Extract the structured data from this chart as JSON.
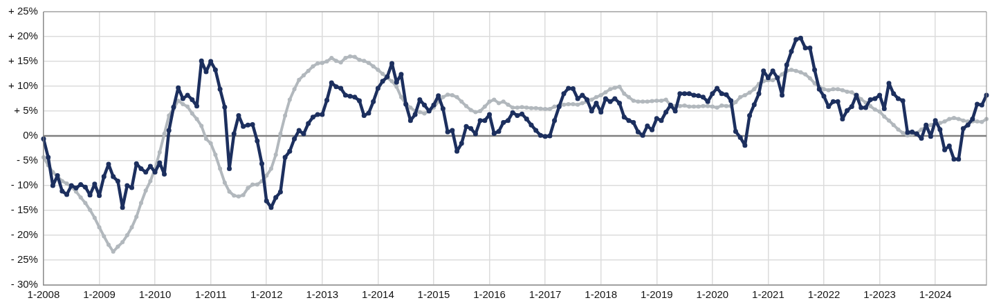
{
  "chart_data": {
    "type": "line",
    "categories": [
      "1-2008",
      null,
      null,
      null,
      null,
      null,
      null,
      null,
      null,
      null,
      null,
      null,
      "1-2009",
      null,
      null,
      null,
      null,
      null,
      null,
      null,
      null,
      null,
      null,
      null,
      "1-2010",
      null,
      null,
      null,
      null,
      null,
      null,
      null,
      null,
      null,
      null,
      null,
      "1-2011",
      null,
      null,
      null,
      null,
      null,
      null,
      null,
      null,
      null,
      null,
      null,
      "1-2012",
      null,
      null,
      null,
      null,
      null,
      null,
      null,
      null,
      null,
      null,
      null,
      "1-2013",
      null,
      null,
      null,
      null,
      null,
      null,
      null,
      null,
      null,
      null,
      null,
      "1-2014",
      null,
      null,
      null,
      null,
      null,
      null,
      null,
      null,
      null,
      null,
      null,
      "1-2015",
      null,
      null,
      null,
      null,
      null,
      null,
      null,
      null,
      null,
      null,
      null,
      "1-2016",
      null,
      null,
      null,
      null,
      null,
      null,
      null,
      null,
      null,
      null,
      null,
      "1-2017",
      null,
      null,
      null,
      null,
      null,
      null,
      null,
      null,
      null,
      null,
      null,
      "1-2018",
      null,
      null,
      null,
      null,
      null,
      null,
      null,
      null,
      null,
      null,
      null,
      "1-2019",
      null,
      null,
      null,
      null,
      null,
      null,
      null,
      null,
      null,
      null,
      null,
      "1-2020",
      null,
      null,
      null,
      null,
      null,
      null,
      null,
      null,
      null,
      null,
      null,
      "1-2021",
      null,
      null,
      null,
      null,
      null,
      null,
      null,
      null,
      null,
      null,
      null,
      "1-2022",
      null,
      null,
      null,
      null,
      null,
      null,
      null,
      null,
      null,
      null,
      null,
      "1-2023",
      null,
      null,
      null,
      null,
      null,
      null,
      null,
      null,
      null,
      null,
      null,
      "1-2024",
      null,
      null,
      null,
      null,
      null,
      null,
      null,
      null,
      null,
      null,
      null
    ],
    "series": [
      {
        "color": "#1c2f5e",
        "values": [
          -0.6,
          -4.3,
          -10,
          -8,
          -11.1,
          -11.8,
          -10,
          -10.5,
          -9.8,
          -10.3,
          -11.9,
          -9.7,
          -12,
          -8.2,
          -5.7,
          -8.2,
          -9.1,
          -14.4,
          -10,
          -10.4,
          -5.6,
          -6.6,
          -7.3,
          -6.1,
          -7.3,
          -5.4,
          -7.7,
          1.1,
          5.8,
          9.7,
          7.5,
          8.2,
          7.3,
          6,
          15.1,
          12.9,
          15,
          13.3,
          9.4,
          5.8,
          -6.6,
          0.4,
          4.1,
          1.9,
          2.2,
          2.3,
          -1,
          -5.6,
          -13.1,
          -14.4,
          -12.4,
          -11.3,
          -4.3,
          -3.1,
          -0.6,
          1.1,
          0.4,
          2.5,
          3.8,
          4.3,
          4.3,
          7.2,
          10.7,
          9.9,
          9.6,
          8.2,
          8,
          7.8,
          7.1,
          4.1,
          4.6,
          6.9,
          9.6,
          11,
          11.9,
          14.6,
          10.8,
          12.4,
          6.4,
          3.1,
          4.3,
          7.3,
          6.2,
          5,
          6.2,
          8.1,
          5.5,
          0.8,
          1.1,
          -3.1,
          -1.5,
          1.9,
          1.5,
          0.4,
          3.1,
          3.1,
          4.3,
          0.5,
          0.9,
          2.7,
          3.1,
          4.7,
          4.1,
          4.4,
          3.4,
          2.2,
          1.1,
          0.1,
          -0.1,
          0,
          3.1,
          5.9,
          8.5,
          9.6,
          9.5,
          7.5,
          8.2,
          7.3,
          5,
          6.6,
          4.8,
          7.5,
          6.9,
          7.5,
          6.6,
          3.8,
          3.1,
          2.7,
          0.8,
          0.1,
          2,
          1.2,
          3.5,
          3.1,
          4.8,
          6.2,
          5,
          8.5,
          8.5,
          8.5,
          8.2,
          8.1,
          7.8,
          6.9,
          8.5,
          9.6,
          8.5,
          8.3,
          7.1,
          0.9,
          -0.3,
          -1.9,
          4.1,
          6.3,
          8.5,
          13.1,
          11.7,
          13.1,
          11.7,
          8.2,
          14.3,
          17,
          19.4,
          19.7,
          17.7,
          17.7,
          13.3,
          9.4,
          8,
          5.9,
          6.9,
          6.9,
          3.4,
          5.1,
          5.9,
          8.2,
          5.7,
          5.7,
          7.3,
          7.5,
          8.2,
          5.5,
          10.6,
          8.5,
          7.5,
          7.1,
          0.7,
          0.8,
          0.4,
          -0.5,
          2.2,
          -0.1,
          3.1,
          1.3,
          -2.8,
          -2,
          -4.7,
          -4.7,
          1.5,
          2.2,
          3.4,
          6.4,
          6.2,
          8.2
        ]
      },
      {
        "color": "#b2b8bd",
        "values": [
          -4.3,
          -5.9,
          -7.3,
          -8.2,
          -9.1,
          -9.6,
          -10.3,
          -11.2,
          -12.4,
          -13.5,
          -14.9,
          -16.5,
          -18.4,
          -20.2,
          -21.9,
          -23.3,
          -22.3,
          -21.4,
          -20,
          -18.4,
          -16.3,
          -13.5,
          -11,
          -9.1,
          -6.6,
          -3.3,
          0.4,
          4.1,
          5.5,
          7.1,
          6.4,
          5.9,
          4.5,
          3.4,
          2,
          -0.6,
          -1.5,
          -3.8,
          -6.6,
          -9.4,
          -11.2,
          -12,
          -12.2,
          -11.9,
          -10.5,
          -9.8,
          -9.8,
          -9.1,
          -8,
          -6.6,
          -3.8,
          0.4,
          4.1,
          7.3,
          9.4,
          11.3,
          12.2,
          13.1,
          14,
          14.6,
          14.7,
          15,
          15.7,
          15.1,
          14.8,
          15.7,
          16,
          15.9,
          15.3,
          15.1,
          14.7,
          14,
          13.3,
          12.5,
          11.7,
          11,
          9.9,
          7.8,
          6.4,
          5.7,
          5,
          4.8,
          4.5,
          5,
          5.7,
          6.9,
          7.8,
          8.3,
          8.2,
          7.8,
          6.9,
          6,
          5.2,
          4.8,
          5,
          5.9,
          6.9,
          7.3,
          6.6,
          6.9,
          6.3,
          5.7,
          5.7,
          5.8,
          5.7,
          5.6,
          5.6,
          5.5,
          5.4,
          5.4,
          5.9,
          6.1,
          6.3,
          6.4,
          6.4,
          6.3,
          6.6,
          6.9,
          7.3,
          7.8,
          8.2,
          8.8,
          9.4,
          9.7,
          9.9,
          8.5,
          7.8,
          7.1,
          6.9,
          6.9,
          6.9,
          7,
          7.1,
          7.1,
          7.3,
          6.2,
          6,
          6,
          6.1,
          5.9,
          5.9,
          5.9,
          6,
          6,
          5.9,
          5.7,
          6.1,
          6,
          6,
          6.8,
          7.8,
          8.2,
          8.7,
          9.4,
          10.5,
          11,
          11.2,
          11.2,
          11.7,
          12.4,
          13.1,
          13.3,
          13.1,
          12.8,
          12.4,
          11.6,
          10.6,
          9.9,
          9.4,
          9.2,
          9.4,
          9.4,
          9.2,
          8.9,
          8.8,
          8.1,
          7.4,
          6.7,
          6,
          5.3,
          4.9,
          3.9,
          3.1,
          2.2,
          1.3,
          0.6,
          0.1,
          0.3,
          0.6,
          1.3,
          1.8,
          2.2,
          2.5,
          2.6,
          2.9,
          3.4,
          3.6,
          3.4,
          3.1,
          2.9,
          2.9,
          2.9,
          2.8,
          3.4
        ]
      }
    ],
    "ylim": [
      -30,
      25
    ],
    "yticks": [
      {
        "value": -30,
        "label": "- 30%"
      },
      {
        "value": -25,
        "label": "- 25%"
      },
      {
        "value": -20,
        "label": "- 20%"
      },
      {
        "value": -15,
        "label": "- 15%"
      },
      {
        "value": -10,
        "label": "- 10%"
      },
      {
        "value": -5,
        "label": "- 5%"
      },
      {
        "value": 0,
        "label": "0%"
      },
      {
        "value": 5,
        "label": "+ 5%"
      },
      {
        "value": 10,
        "label": "+ 10%"
      },
      {
        "value": 15,
        "label": "+ 15%"
      },
      {
        "value": 20,
        "label": "+ 20%"
      },
      {
        "value": 25,
        "label": "+ 25%"
      }
    ],
    "ref_lines": [
      {
        "axis": "y",
        "value": 0,
        "color": "#7f7f7f"
      }
    ],
    "grid": true,
    "legend": false,
    "marker": "circle",
    "line_style": "solid"
  }
}
